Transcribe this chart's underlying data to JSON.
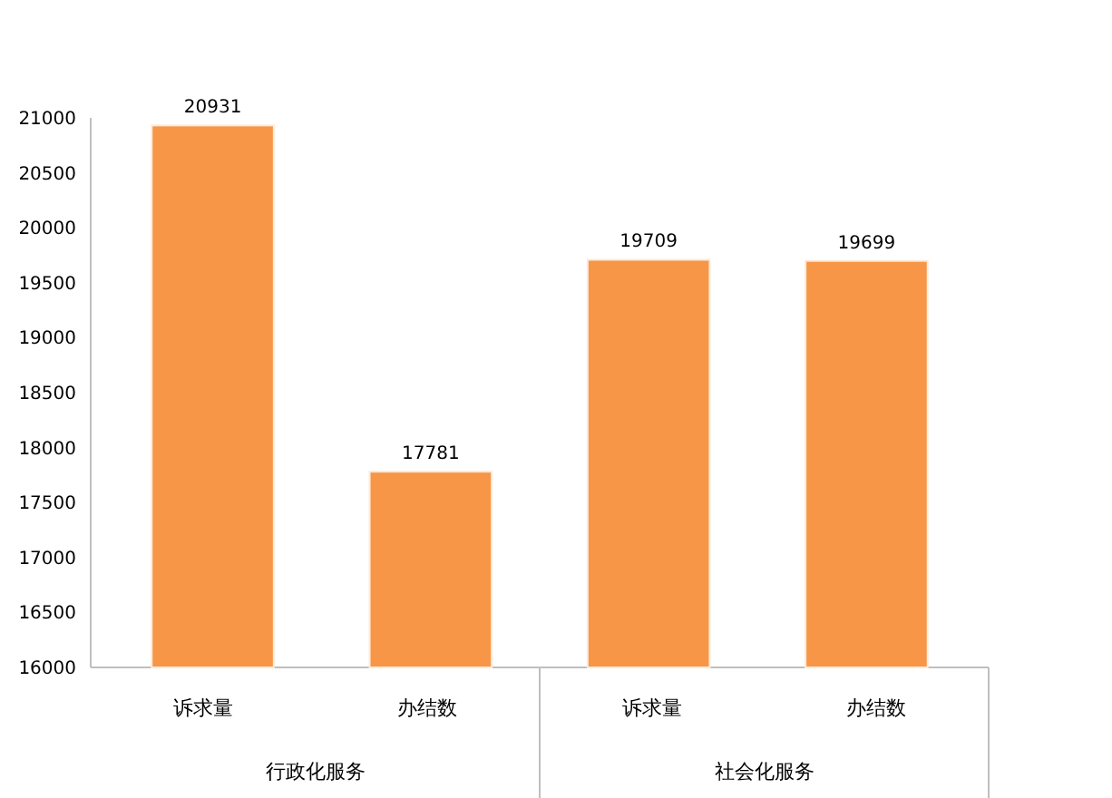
{
  "chart_data": {
    "type": "bar",
    "categories": [
      "诉求量",
      "办结数",
      "诉求量",
      "办结数"
    ],
    "values": [
      20931,
      17781,
      19709,
      19699
    ],
    "color": "#f79646",
    "ylim": [
      16000,
      21000
    ],
    "yticks": [
      16000,
      16500,
      17000,
      17500,
      18000,
      18500,
      19000,
      19500,
      20000,
      20500,
      21000
    ],
    "data_labels": true,
    "annotations": [
      "行政化服务",
      "社会化服务"
    ]
  }
}
